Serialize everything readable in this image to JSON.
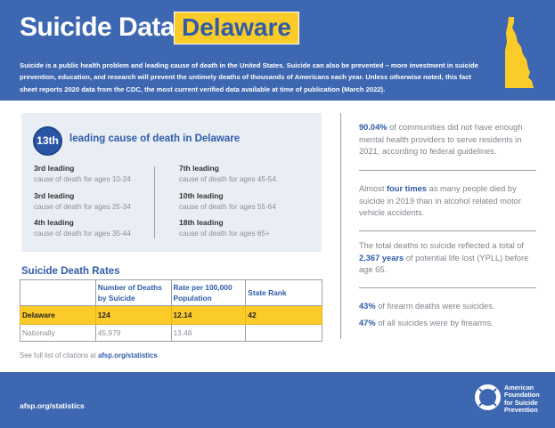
{
  "header": {
    "title": "Suicide Data:",
    "state": "Delaware",
    "intro": "Suicide is a public health problem and leading cause of death in the United States. Suicide can also be prevented – more investment in suicide prevention, education, and research will prevent the untimely deaths of thousands of Americans each year. Unless otherwise noted, this fact sheet reports 2020 data from the CDC, the most current verified data available at time of publication (March 2022).",
    "state_icon": "delaware-map-icon"
  },
  "ranking": {
    "rank": "13th",
    "label": "leading cause of death in Delaware",
    "items": [
      {
        "rank": "3rd leading",
        "desc": "cause of death for ages 10-24"
      },
      {
        "rank": "3rd leading",
        "desc": "cause of death for ages 25-34"
      },
      {
        "rank": "4th leading",
        "desc": "cause of death for ages 35-44"
      },
      {
        "rank": "7th leading",
        "desc": "cause of death for ages 45-54"
      },
      {
        "rank": "10th leading",
        "desc": "cause of death for ages 55-64"
      },
      {
        "rank": "18th leading",
        "desc": "cause of death for ages 65+"
      }
    ]
  },
  "rates": {
    "title": "Suicide Death Rates",
    "headers": [
      "",
      "Number of Deaths by Suicide",
      "Rate per 100,000 Population",
      "State Rank"
    ],
    "rows": [
      [
        "Delaware",
        "124",
        "12.14",
        "42"
      ],
      [
        "Nationally",
        "45,979",
        "13.48",
        ""
      ]
    ]
  },
  "citation": {
    "prefix": "See full list of citations at ",
    "link": "afsp.org/statistics",
    "suffix": "."
  },
  "facts": [
    {
      "bold": "90.04%",
      "text": " of communities did not have enough mental health providers to serve residents in 2021, according to federal guidelines."
    },
    {
      "pre": "Almost ",
      "bold": "four times",
      "text": " as many people died by suicide in 2019 than in alcohol related motor vehicle accidents."
    },
    {
      "pre": "The total deaths to suicide reflected a total of ",
      "bold": "2,367 years",
      "text": " of potential life lost (YPLL) before age 65."
    },
    {
      "bold": "43%",
      "text": " of firearm deaths were suicides."
    },
    {
      "bold": "47%",
      "text": " of all suicides were by firearms."
    }
  ],
  "footer": {
    "link": "afsp.org/statistics",
    "logo_lines": [
      "American",
      "Foundation",
      "for Suicide",
      "Prevention"
    ]
  },
  "colors": {
    "brand_blue": "#3d67b1",
    "accent_yellow": "#fbcb2a",
    "panel_gray": "#e9edf4"
  }
}
